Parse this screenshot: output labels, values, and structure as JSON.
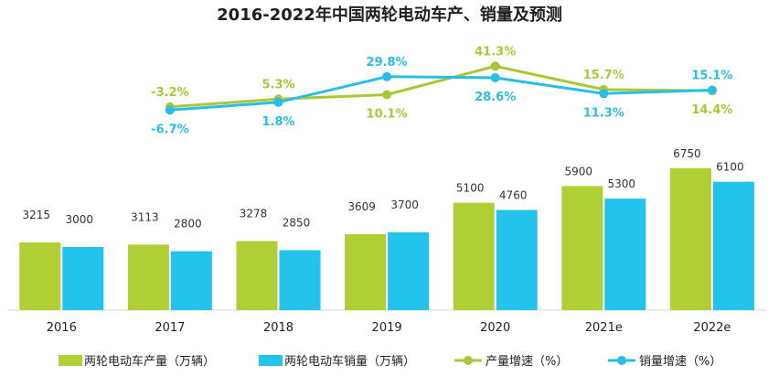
{
  "chart_data": {
    "type": "bar",
    "title": "2016-2022年中国两轮电动车产、销量及预测",
    "categories": [
      "2016",
      "2017",
      "2018",
      "2019",
      "2020",
      "2021e",
      "2022e"
    ],
    "series": [
      {
        "name": "两轮电动车产量（万辆）",
        "kind": "bar",
        "color": "#b0cf35",
        "values": [
          3215,
          3113,
          3278,
          3609,
          5100,
          5900,
          6750
        ]
      },
      {
        "name": "两轮电动车销量（万辆）",
        "kind": "bar",
        "color": "#22c3ec",
        "values": [
          3000,
          2800,
          2850,
          3700,
          4760,
          5300,
          6100
        ]
      },
      {
        "name": "产量增速（%）",
        "kind": "line",
        "color": "#a9c934",
        "x": [
          "2017",
          "2018",
          "2019",
          "2020",
          "2021e",
          "2022e"
        ],
        "values": [
          -3.2,
          5.3,
          10.1,
          41.3,
          15.7,
          14.4
        ],
        "labels": [
          "-3.2%",
          "5.3%",
          "10.1%",
          "41.3%",
          "15.7%",
          "14.4%"
        ]
      },
      {
        "name": "销量增速（%）",
        "kind": "line",
        "color": "#27bfe8",
        "x": [
          "2017",
          "2018",
          "2019",
          "2020",
          "2021e",
          "2022e"
        ],
        "values": [
          -6.7,
          1.8,
          29.8,
          28.6,
          11.3,
          15.1
        ],
        "labels": [
          "-6.7%",
          "1.8%",
          "29.8%",
          "28.6%",
          "11.3%",
          "15.1%"
        ]
      }
    ],
    "legend_position": "bottom",
    "grid": false
  }
}
